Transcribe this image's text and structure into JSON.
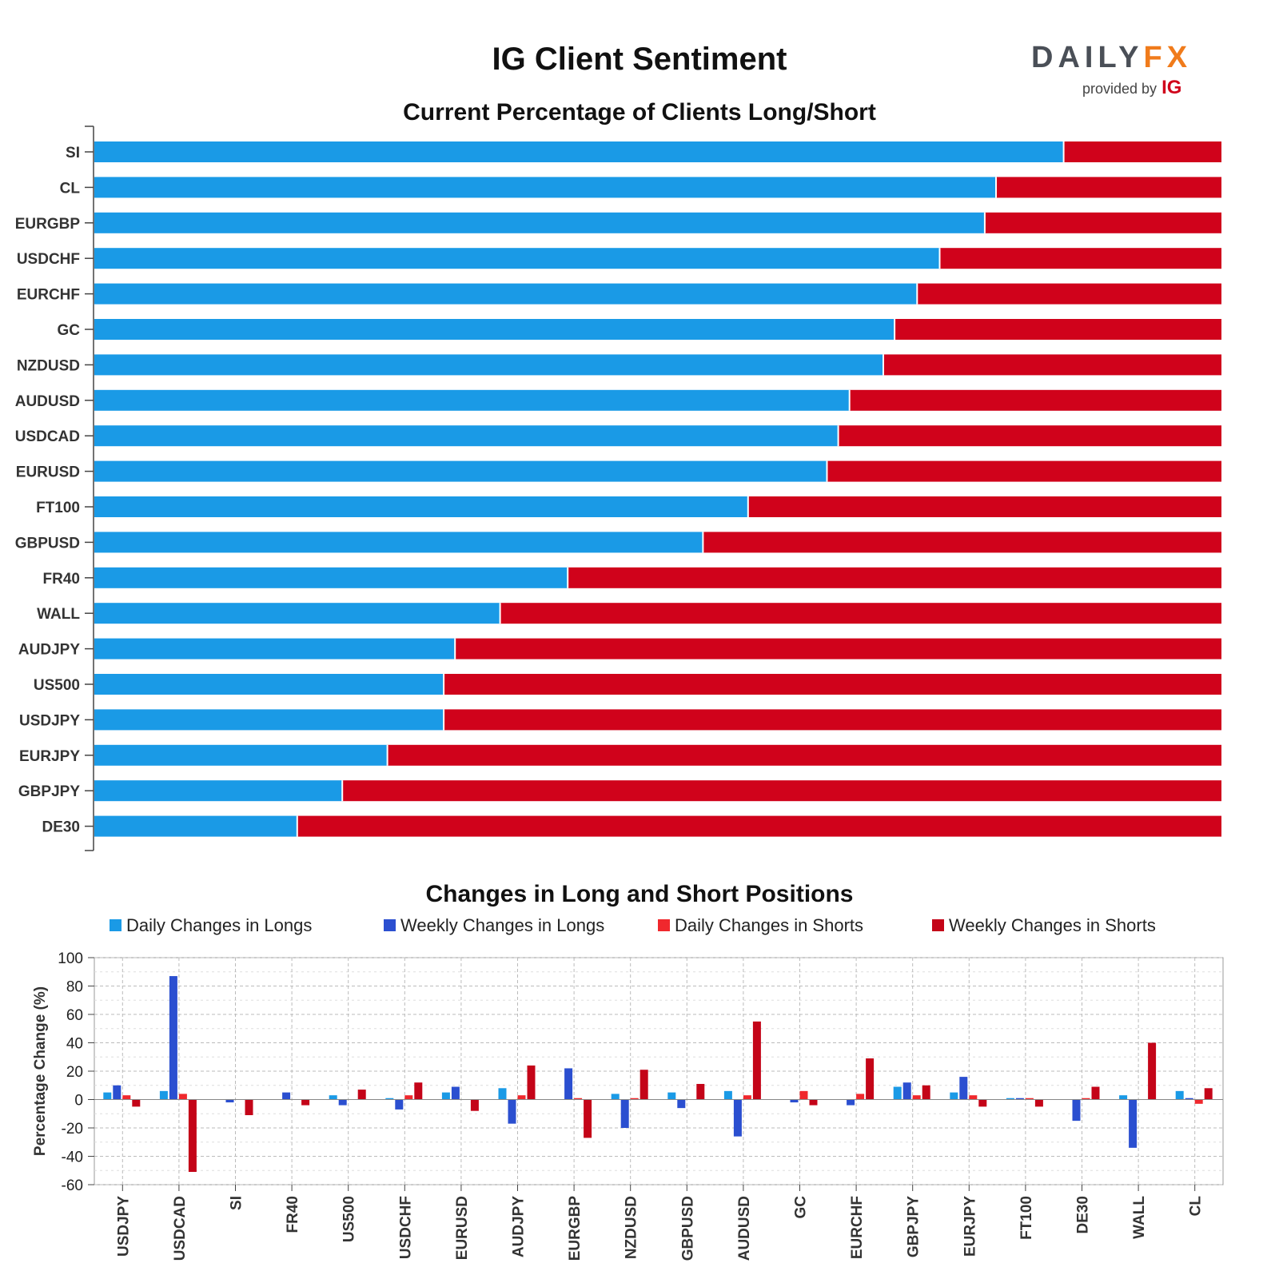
{
  "header": {
    "title": "IG Client Sentiment",
    "logo_word_left": "DAILY",
    "logo_word_right": "FX",
    "logo_provided": "provided by",
    "logo_ig": "IG"
  },
  "chart_data": [
    {
      "type": "bar",
      "orientation": "horizontal",
      "stacked": true,
      "title": "Current Percentage of Clients Long/Short",
      "categories": [
        "SI",
        "CL",
        "EURGBP",
        "USDCHF",
        "EURCHF",
        "GC",
        "NZDUSD",
        "AUDUSD",
        "USDCAD",
        "EURUSD",
        "FT100",
        "GBPUSD",
        "FR40",
        "WALL",
        "AUDJPY",
        "US500",
        "USDJPY",
        "EURJPY",
        "GBPJPY",
        "DE30"
      ],
      "series": [
        {
          "values": [
            86,
            80,
            79,
            75,
            73,
            71,
            70,
            67,
            66,
            65,
            58,
            54,
            42,
            36,
            32,
            31,
            31,
            26,
            22,
            18
          ],
          "color": "#1a9ae6"
        },
        {
          "values": [
            14,
            20,
            21,
            25,
            27,
            29,
            30,
            33,
            34,
            35,
            42,
            46,
            58,
            64,
            68,
            69,
            69,
            74,
            78,
            82
          ],
          "color": "#d0021b"
        }
      ],
      "xlim": [
        0,
        100
      ]
    },
    {
      "type": "bar",
      "title": "Changes in Long and Short Positions",
      "ylabel": "Percentage Change (%)",
      "ylim": [
        -60,
        100
      ],
      "yticks": [
        "100",
        "80",
        "60",
        "40",
        "20",
        "0",
        "-20",
        "-40",
        "-60"
      ],
      "legend_position": "top",
      "categories": [
        "USDJPY",
        "USDCAD",
        "SI",
        "FR40",
        "US500",
        "USDCHF",
        "EURUSD",
        "AUDJPY",
        "EURGBP",
        "NZDUSD",
        "GBPUSD",
        "AUDUSD",
        "GC",
        "EURCHF",
        "GBPJPY",
        "EURJPY",
        "FT100",
        "DE30",
        "WALL",
        "CL"
      ],
      "series": [
        {
          "name": "Daily Changes in Longs",
          "color": "#1a9ae6",
          "values": [
            5,
            6,
            0,
            0,
            3,
            1,
            5,
            8,
            0,
            4,
            5,
            6,
            0,
            0,
            9,
            5,
            1,
            0,
            3,
            6
          ]
        },
        {
          "name": "Weekly Changes in Longs",
          "color": "#2b4fd0",
          "values": [
            10,
            87,
            -2,
            5,
            -4,
            -7,
            9,
            -17,
            22,
            -20,
            -6,
            -26,
            -2,
            -4,
            12,
            16,
            1,
            -15,
            -34,
            1
          ]
        },
        {
          "name": "Daily Changes in Shorts",
          "color": "#f0282d",
          "values": [
            3,
            4,
            0,
            0,
            0,
            3,
            0,
            3,
            1,
            1,
            0,
            3,
            6,
            4,
            3,
            3,
            1,
            1,
            0,
            -3
          ]
        },
        {
          "name": "Weekly Changes in Shorts",
          "color": "#c40418",
          "values": [
            -5,
            -51,
            -11,
            -4,
            7,
            12,
            -8,
            24,
            -27,
            21,
            11,
            55,
            -4,
            29,
            10,
            -5,
            -5,
            9,
            40,
            8
          ]
        }
      ]
    }
  ]
}
